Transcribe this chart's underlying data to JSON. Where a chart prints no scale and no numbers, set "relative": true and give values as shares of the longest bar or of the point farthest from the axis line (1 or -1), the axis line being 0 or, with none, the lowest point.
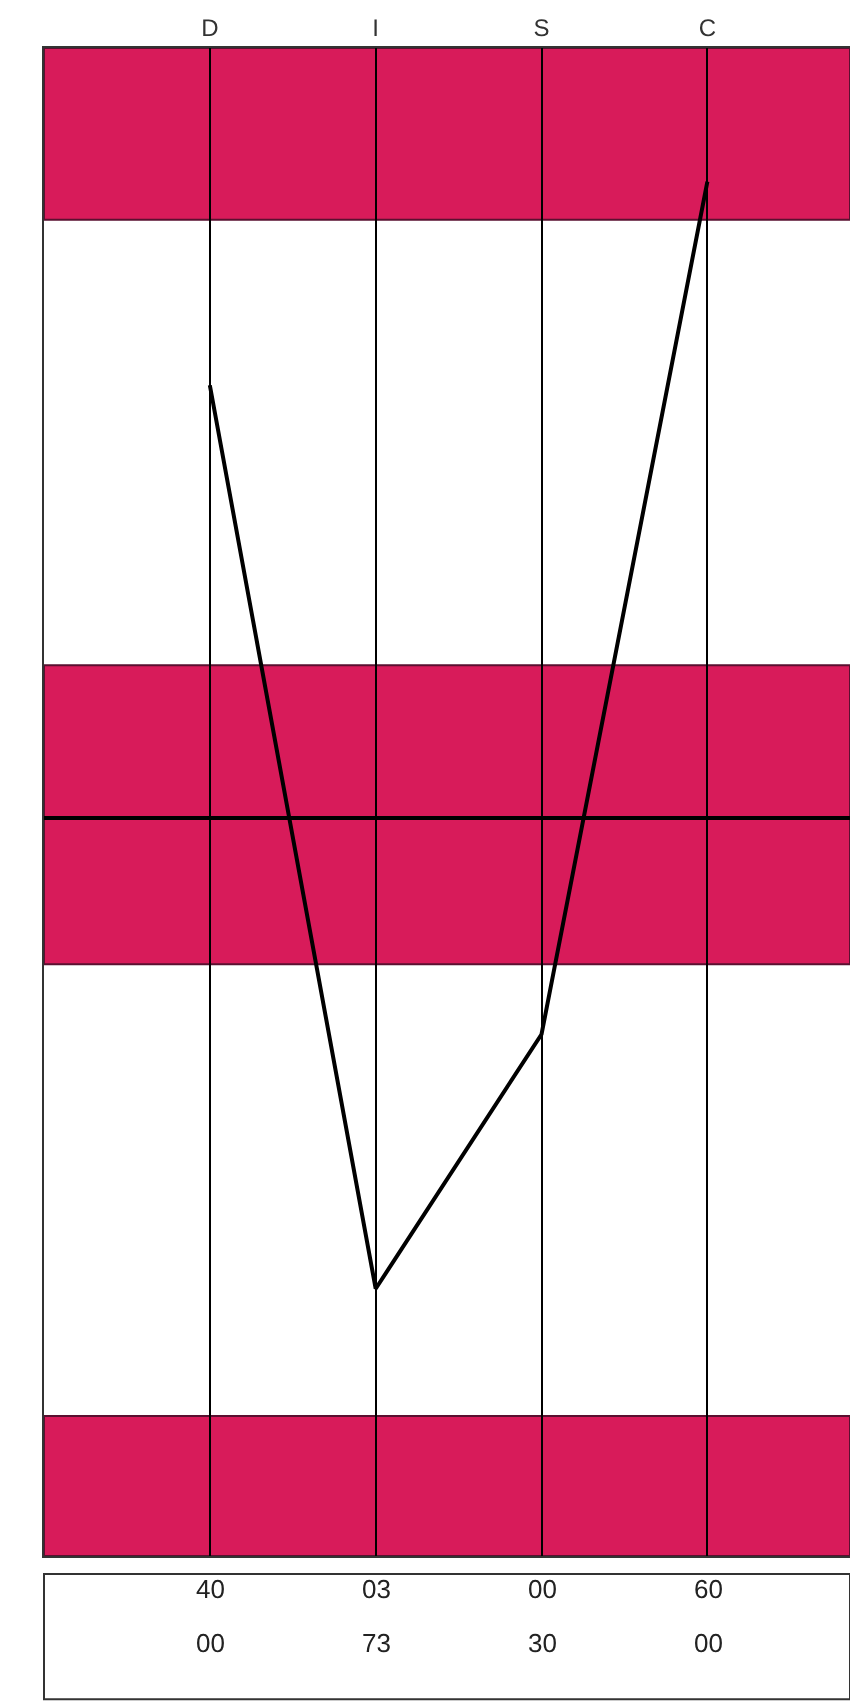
{
  "chart_data": {
    "type": "line",
    "relative": true,
    "categories": [
      "D",
      "I",
      "S",
      "C"
    ],
    "series": [
      {
        "color": "#000000",
        "values": [
          0.68,
          -0.74,
          -0.34,
          1
        ]
      }
    ],
    "bands": [
      {
        "axis": "y",
        "from": 0.94,
        "to": 1.21,
        "color": "#d81b5a"
      },
      {
        "axis": "y",
        "from": -0.23,
        "to": 0.24,
        "color": "#d81b5a"
      },
      {
        "axis": "y",
        "from": -1.16,
        "to": -0.94,
        "color": "#d81b5a"
      }
    ],
    "grid": "x",
    "marker": "none",
    "line_style": "solid",
    "annotations": [
      "40",
      "03",
      "00",
      "60",
      "00",
      "73",
      "30",
      "00"
    ]
  }
}
